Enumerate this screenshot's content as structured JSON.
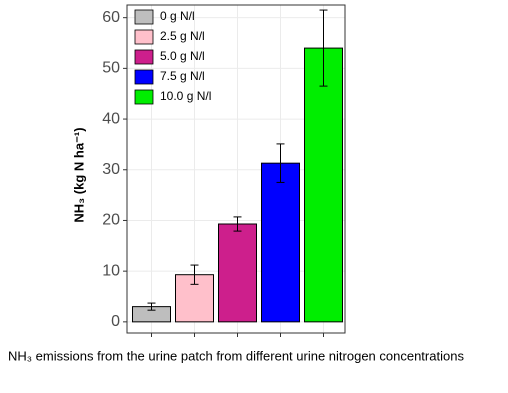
{
  "chart_data": {
    "type": "bar",
    "y_label": "NH₃ (kg N ha⁻¹)",
    "caption": "NH₃ emissions from the urine patch from different urine nitrogen concentrations",
    "categories": [
      "0 g N/l",
      "2.5 g N/l",
      "5.0 g N/l",
      "7.5 g N/l",
      "10.0 g N/l"
    ],
    "values": [
      3.0,
      9.3,
      19.3,
      31.3,
      54
    ],
    "errors": [
      0.7,
      1.9,
      1.4,
      3.8,
      7.5
    ],
    "colors": [
      "#bebebe",
      "#ffc0cb",
      "#cd1f8c",
      "#0000ff",
      "#00ee00"
    ],
    "ylim": [
      -2.2,
      62.5
    ],
    "yticks": [
      0,
      10,
      20,
      30,
      40,
      50,
      60
    ],
    "grid": true,
    "legend": "top-left"
  }
}
